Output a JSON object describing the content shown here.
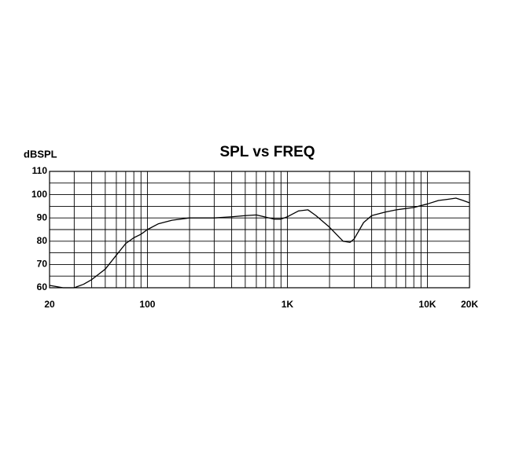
{
  "chart_data": {
    "type": "line",
    "title": "SPL vs FREQ",
    "y_label": "dBSPL",
    "x_log": true,
    "grid": true,
    "xlim": [
      20,
      20000
    ],
    "xticks": [
      {
        "value": 20,
        "label": "20"
      },
      {
        "value": 100,
        "label": "100"
      },
      {
        "value": 1000,
        "label": "1K"
      },
      {
        "value": 10000,
        "label": "10K"
      },
      {
        "value": 20000,
        "label": "20K"
      }
    ],
    "x_minor_grid": [
      30,
      40,
      50,
      60,
      70,
      80,
      90,
      200,
      300,
      400,
      500,
      600,
      700,
      800,
      900,
      2000,
      3000,
      4000,
      5000,
      6000,
      7000,
      8000,
      9000
    ],
    "ylim": [
      60,
      110
    ],
    "yticks": [
      60,
      70,
      80,
      90,
      100,
      110
    ],
    "y_minor_grid": [
      65,
      75,
      85,
      95,
      105
    ],
    "x": [
      20,
      25,
      30,
      35,
      40,
      50,
      60,
      70,
      80,
      90,
      100,
      120,
      150,
      200,
      300,
      400,
      500,
      600,
      800,
      900,
      1000,
      1200,
      1400,
      1600,
      2000,
      2500,
      2800,
      3000,
      3500,
      4000,
      5000,
      6000,
      8000,
      10000,
      12000,
      14000,
      16000,
      18000,
      20000
    ],
    "series": [
      {
        "name": "SPL",
        "color": "#000000",
        "values": [
          61,
          60,
          60,
          61.5,
          63.5,
          68,
          74,
          79,
          81.5,
          83,
          85,
          87.5,
          89,
          90,
          90,
          90.5,
          91,
          91.3,
          89.5,
          89.5,
          90.5,
          93,
          93.5,
          91,
          86,
          80,
          79.5,
          81,
          88,
          91,
          92.5,
          93.5,
          94.5,
          96,
          97.5,
          98,
          98.5,
          97.5,
          96.5
        ]
      }
    ]
  }
}
